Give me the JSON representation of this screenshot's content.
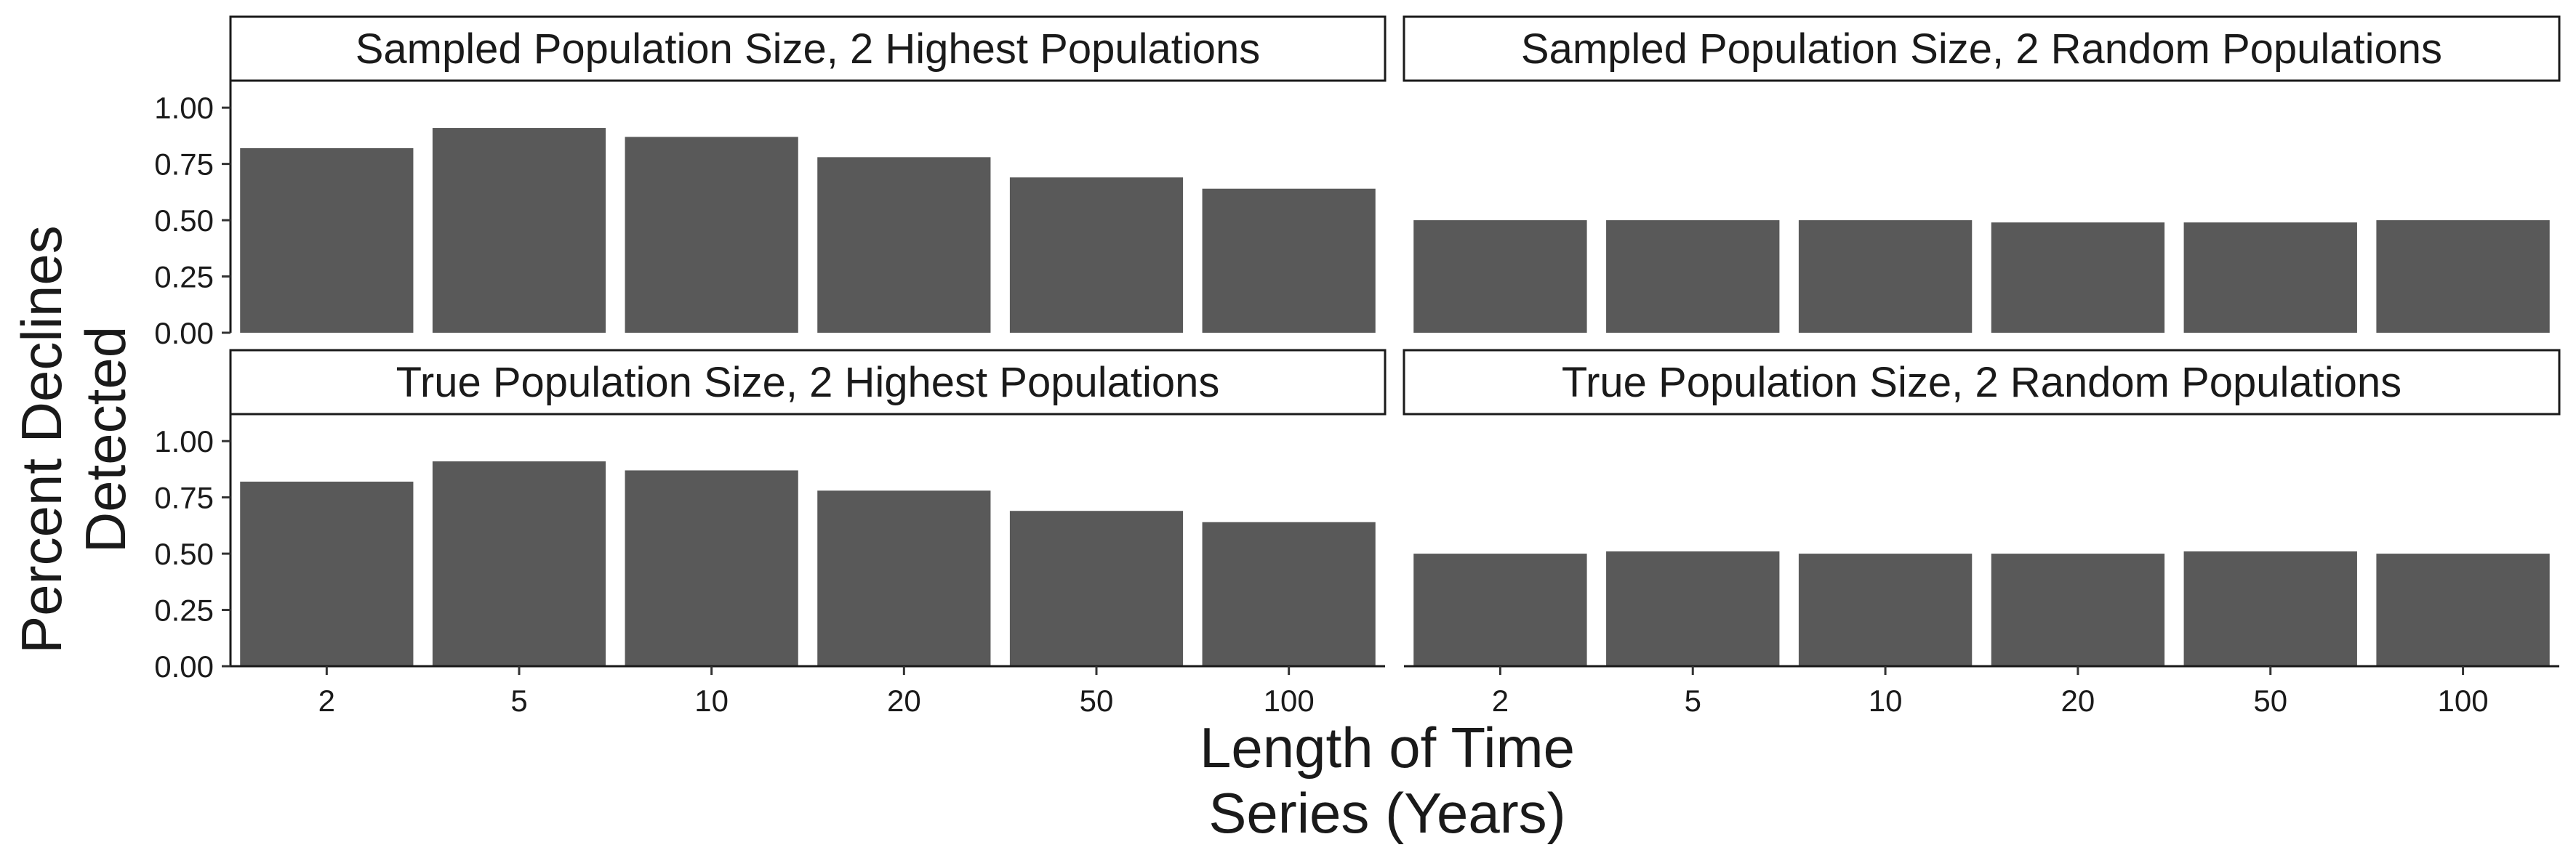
{
  "figure": {
    "xlabel_lines": [
      "Length of Time",
      "Series (Years)"
    ],
    "ylabel_lines": [
      "Percent Declines",
      "Detected"
    ],
    "bar_color": "#595959",
    "y_ticks": [
      "0.00",
      "0.25",
      "0.50",
      "0.75",
      "1.00"
    ],
    "x_ticks": [
      "2",
      "5",
      "10",
      "20",
      "50",
      "100"
    ]
  },
  "chart_data": [
    {
      "type": "bar",
      "title": "Sampled Population Size, 2 Highest Populations",
      "categories": [
        "2",
        "5",
        "10",
        "20",
        "50",
        "100"
      ],
      "values": [
        0.82,
        0.91,
        0.87,
        0.78,
        0.69,
        0.64
      ],
      "ylim": [
        0,
        1.12
      ],
      "xlabel": "Length of Time Series (Years)",
      "ylabel": "Percent Declines Detected"
    },
    {
      "type": "bar",
      "title": "Sampled Population Size, 2 Random Populations",
      "categories": [
        "2",
        "5",
        "10",
        "20",
        "50",
        "100"
      ],
      "values": [
        0.5,
        0.5,
        0.5,
        0.49,
        0.49,
        0.5
      ],
      "ylim": [
        0,
        1.12
      ],
      "xlabel": "Length of Time Series (Years)",
      "ylabel": "Percent Declines Detected"
    },
    {
      "type": "bar",
      "title": "True Population Size, 2 Highest Populations",
      "categories": [
        "2",
        "5",
        "10",
        "20",
        "50",
        "100"
      ],
      "values": [
        0.82,
        0.91,
        0.87,
        0.78,
        0.69,
        0.64
      ],
      "ylim": [
        0,
        1.12
      ],
      "xlabel": "Length of Time Series (Years)",
      "ylabel": "Percent Declines Detected"
    },
    {
      "type": "bar",
      "title": "True Population Size, 2 Random Populations",
      "categories": [
        "2",
        "5",
        "10",
        "20",
        "50",
        "100"
      ],
      "values": [
        0.5,
        0.51,
        0.5,
        0.5,
        0.51,
        0.5
      ],
      "ylim": [
        0,
        1.12
      ],
      "xlabel": "Length of Time Series (Years)",
      "ylabel": "Percent Declines Detected"
    }
  ]
}
